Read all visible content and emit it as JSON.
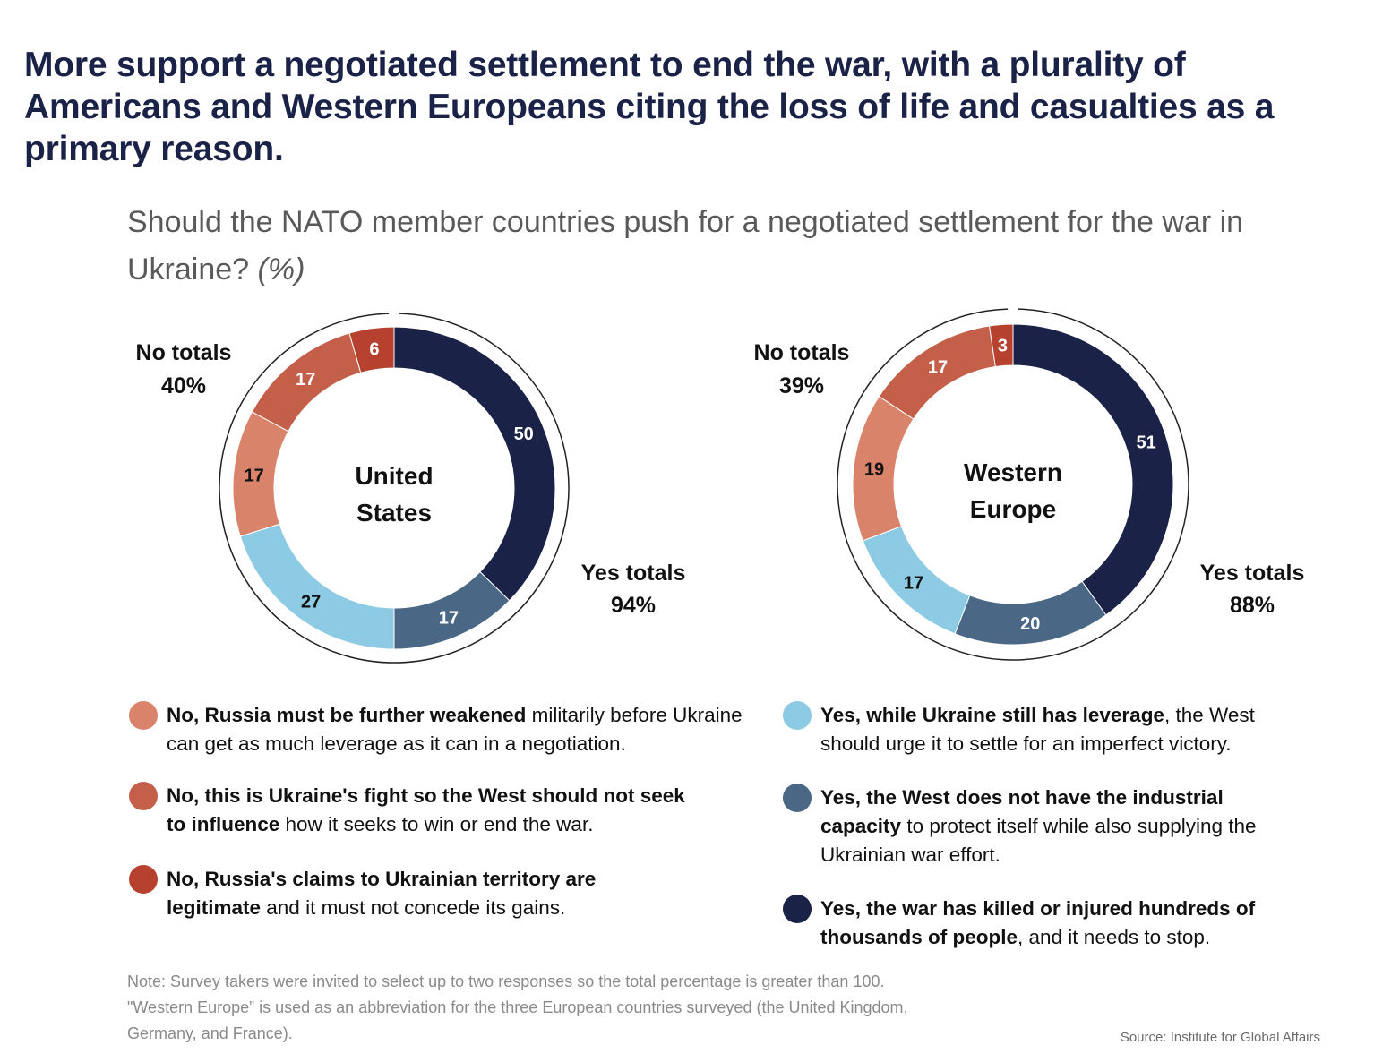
{
  "title": "More support a negotiated settlement to end the war, with a plurality of Americans and Western Europeans citing the loss of life and casualties as a primary reason.",
  "subtitle": "Should the NATO member countries push for a negotiated settlement for the war in Ukraine?",
  "subtitle_unit": "(%)",
  "colors": {
    "no_weakened": "#d9846a",
    "no_ukraines_fight": "#c4604a",
    "no_claims_legitimate": "#b5412e",
    "yes_leverage": "#8ccbe3",
    "yes_industrial": "#4a6886",
    "yes_killed": "#1b2247"
  },
  "chart_data": [
    {
      "type": "donut",
      "center_label_line1": "United",
      "center_label_line2": "States",
      "no_totals_label": "No totals",
      "no_totals_value": "40%",
      "yes_totals_label": "Yes totals",
      "yes_totals_value": "94%",
      "slices": [
        {
          "key": "yes_killed",
          "value": 50
        },
        {
          "key": "yes_industrial",
          "value": 17
        },
        {
          "key": "yes_leverage",
          "value": 27
        },
        {
          "key": "no_weakened",
          "value": 17
        },
        {
          "key": "no_ukraines_fight",
          "value": 17
        },
        {
          "key": "no_claims_legitimate",
          "value": 6
        }
      ]
    },
    {
      "type": "donut",
      "center_label_line1": "Western",
      "center_label_line2": "Europe",
      "no_totals_label": "No totals",
      "no_totals_value": "39%",
      "yes_totals_label": "Yes totals",
      "yes_totals_value": "88%",
      "slices": [
        {
          "key": "yes_killed",
          "value": 51
        },
        {
          "key": "yes_industrial",
          "value": 20
        },
        {
          "key": "yes_leverage",
          "value": 17
        },
        {
          "key": "no_weakened",
          "value": 19
        },
        {
          "key": "no_ukraines_fight",
          "value": 17
        },
        {
          "key": "no_claims_legitimate",
          "value": 3
        }
      ]
    }
  ],
  "legend": [
    {
      "key": "no_weakened",
      "bold": "No, Russia must be further weakened",
      "rest": " militarily before Ukraine can get as much leverage as it can in a negotiation."
    },
    {
      "key": "no_ukraines_fight",
      "bold": "No, this is Ukraine's fight so the West should not seek to influence",
      "rest": " how it seeks to win or end the war."
    },
    {
      "key": "no_claims_legitimate",
      "bold": "No, Russia's claims to Ukrainian territory are legitimate",
      "rest": " and it must not concede its gains."
    },
    {
      "key": "yes_leverage",
      "bold": "Yes, while Ukraine still has leverage",
      "rest": ", the West should urge it to settle for an imperfect victory."
    },
    {
      "key": "yes_industrial",
      "bold": "Yes, the West does not have the industrial capacity",
      "rest": " to protect itself while also supplying the Ukrainian war effort."
    },
    {
      "key": "yes_killed",
      "bold": "Yes, the war has killed or injured hundreds of thousands of people",
      "rest": ", and it needs to stop."
    }
  ],
  "note": "Note: Survey takers were invited to select up to two responses so the total percentage is greater than 100. \"Western Europe” is used as an abbreviation for the three European countries surveyed (the United Kingdom, Germany, and France).",
  "source": "Source: Institute for Global Affairs"
}
